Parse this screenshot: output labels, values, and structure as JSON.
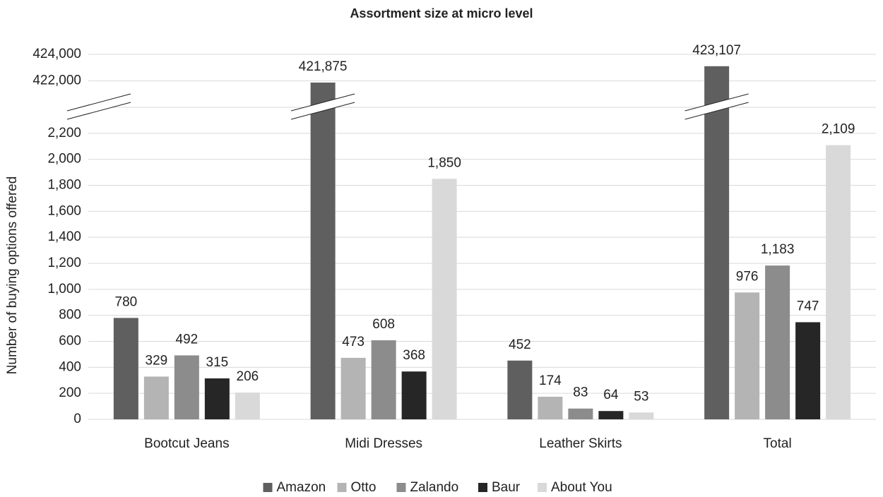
{
  "chart_data": {
    "type": "bar",
    "title": "Assortment size at micro level",
    "y_label": "Number of buying options offered",
    "categories": [
      "Bootcut Jeans",
      "Midi Dresses",
      "Leather Skirts",
      "Total"
    ],
    "series": [
      {
        "name": "Amazon",
        "color": "#5f5f5f",
        "values": [
          780,
          421875,
          452,
          423107
        ],
        "value_labels": [
          "780",
          "421,875",
          "452",
          "423,107"
        ]
      },
      {
        "name": "Otto",
        "color": "#b4b4b4",
        "values": [
          329,
          473,
          174,
          976
        ],
        "value_labels": [
          "329",
          "473",
          "174",
          "976"
        ]
      },
      {
        "name": "Zalando",
        "color": "#8c8c8c",
        "values": [
          492,
          608,
          83,
          1183
        ],
        "value_labels": [
          "492",
          "608",
          "83",
          "1,183"
        ]
      },
      {
        "name": "Baur",
        "color": "#262626",
        "values": [
          315,
          368,
          64,
          747
        ],
        "value_labels": [
          "315",
          "368",
          "64",
          "747"
        ]
      },
      {
        "name": "About You",
        "color": "#d9d9d9",
        "values": [
          206,
          1850,
          53,
          2109
        ],
        "value_labels": [
          "206",
          "1,850",
          "53",
          "2,109"
        ]
      }
    ],
    "ylim": [
      0,
      2400
    ],
    "ylim_upper": [
      421500,
      424000
    ],
    "yticks": [
      0,
      200,
      400,
      600,
      800,
      {
        "value": 1000,
        "label": "1,000"
      },
      {
        "value": 1200,
        "label": "1,200"
      },
      {
        "value": 1400,
        "label": "1,400"
      },
      {
        "value": 1600,
        "label": "1,600"
      },
      {
        "value": 1800,
        "label": "1,800"
      },
      {
        "value": 2000,
        "label": "2,000"
      },
      {
        "value": 2200,
        "label": "2,200"
      },
      {
        "value": 422000,
        "label": "422,000"
      },
      {
        "value": 424000,
        "label": "424,000"
      }
    ],
    "grid": true,
    "legend": "bottom"
  }
}
